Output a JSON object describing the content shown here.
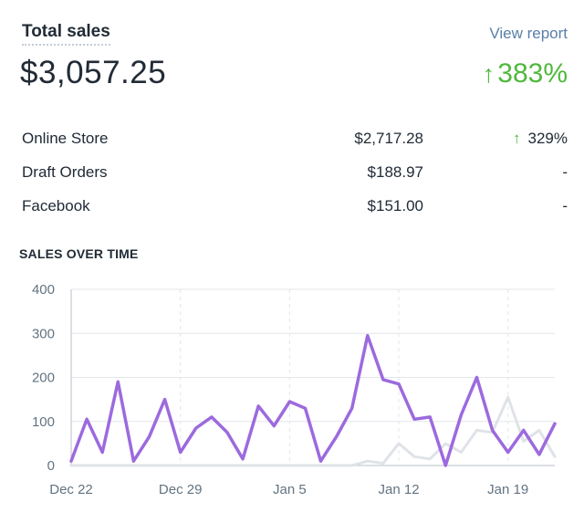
{
  "header": {
    "title": "Total sales",
    "view_report": "View report"
  },
  "summary": {
    "total": "$3,057.25",
    "change_arrow": "↑",
    "change": "383%"
  },
  "breakdown": [
    {
      "name": "Online Store",
      "amount": "$2,717.28",
      "change_arrow": "↑",
      "change": "329%"
    },
    {
      "name": "Draft Orders",
      "amount": "$188.97",
      "change": "-"
    },
    {
      "name": "Facebook",
      "amount": "$151.00",
      "change": "-"
    }
  ],
  "section_title": "SALES OVER TIME",
  "chart_data": {
    "type": "line",
    "title": "SALES OVER TIME",
    "ylim": [
      0,
      400
    ],
    "yticks": [
      0,
      100,
      200,
      300,
      400
    ],
    "x_tick_labels": [
      "Dec 22",
      "Dec 29",
      "Jan 5",
      "Jan 12",
      "Jan 19"
    ],
    "x": [
      "Dec 22",
      "Dec 23",
      "Dec 24",
      "Dec 25",
      "Dec 26",
      "Dec 27",
      "Dec 28",
      "Dec 29",
      "Dec 30",
      "Dec 31",
      "Jan 1",
      "Jan 2",
      "Jan 3",
      "Jan 4",
      "Jan 5",
      "Jan 6",
      "Jan 7",
      "Jan 8",
      "Jan 9",
      "Jan 10",
      "Jan 11",
      "Jan 12",
      "Jan 13",
      "Jan 14",
      "Jan 15",
      "Jan 16",
      "Jan 17",
      "Jan 18",
      "Jan 19",
      "Jan 20",
      "Jan 21",
      "Jan 22"
    ],
    "grid": true,
    "colors": {
      "current": "#9c6ade",
      "previous": "#dfe3e8",
      "grid": "#e3e6ea",
      "axis": "#b8bfc7"
    },
    "series": [
      {
        "values": [
          10,
          105,
          30,
          190,
          10,
          65,
          150,
          30,
          85,
          110,
          75,
          15,
          135,
          90,
          145,
          130,
          10,
          65,
          130,
          295,
          195,
          185,
          105,
          110,
          0,
          115,
          200,
          80,
          30,
          80,
          25,
          95
        ]
      },
      {
        "values": [
          0,
          0,
          0,
          0,
          0,
          0,
          0,
          0,
          0,
          0,
          0,
          0,
          0,
          0,
          0,
          0,
          0,
          0,
          0,
          10,
          5,
          50,
          20,
          15,
          50,
          30,
          80,
          75,
          155,
          55,
          80,
          20
        ]
      }
    ]
  }
}
